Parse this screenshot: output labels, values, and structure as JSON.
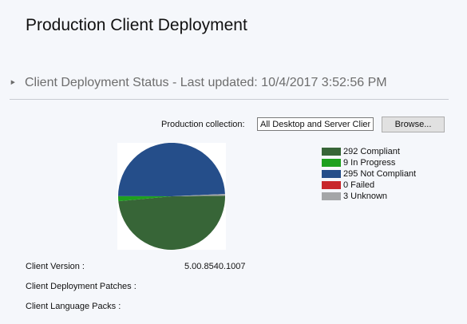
{
  "page": {
    "title": "Production Client Deployment"
  },
  "section": {
    "title": "Client Deployment Status - Last updated: 10/4/2017 3:52:56 PM",
    "collapse_icon": "collapse-triangle-icon"
  },
  "collection": {
    "label": "Production collection:",
    "value": "All Desktop and Server Clients",
    "browse_label": "Browse..."
  },
  "chart_data": {
    "type": "pie",
    "categories": [
      "Compliant",
      "In Progress",
      "Not Compliant",
      "Failed",
      "Unknown"
    ],
    "values": [
      292,
      9,
      295,
      0,
      3
    ],
    "legend_labels": [
      "292 Compliant",
      "9 In Progress",
      "295 Not Compliant",
      "0 Failed",
      "3 Unknown"
    ],
    "colors": [
      "#376537",
      "#1ea01e",
      "#254e8a",
      "#c8282c",
      "#a4a6a8"
    ],
    "legend_position": "right"
  },
  "info": {
    "client_version_label": "Client Version :",
    "client_version_value": "5.00.8540.1007",
    "patches_label": "Client Deployment Patches :",
    "language_packs_label": "Client Language Packs :"
  }
}
